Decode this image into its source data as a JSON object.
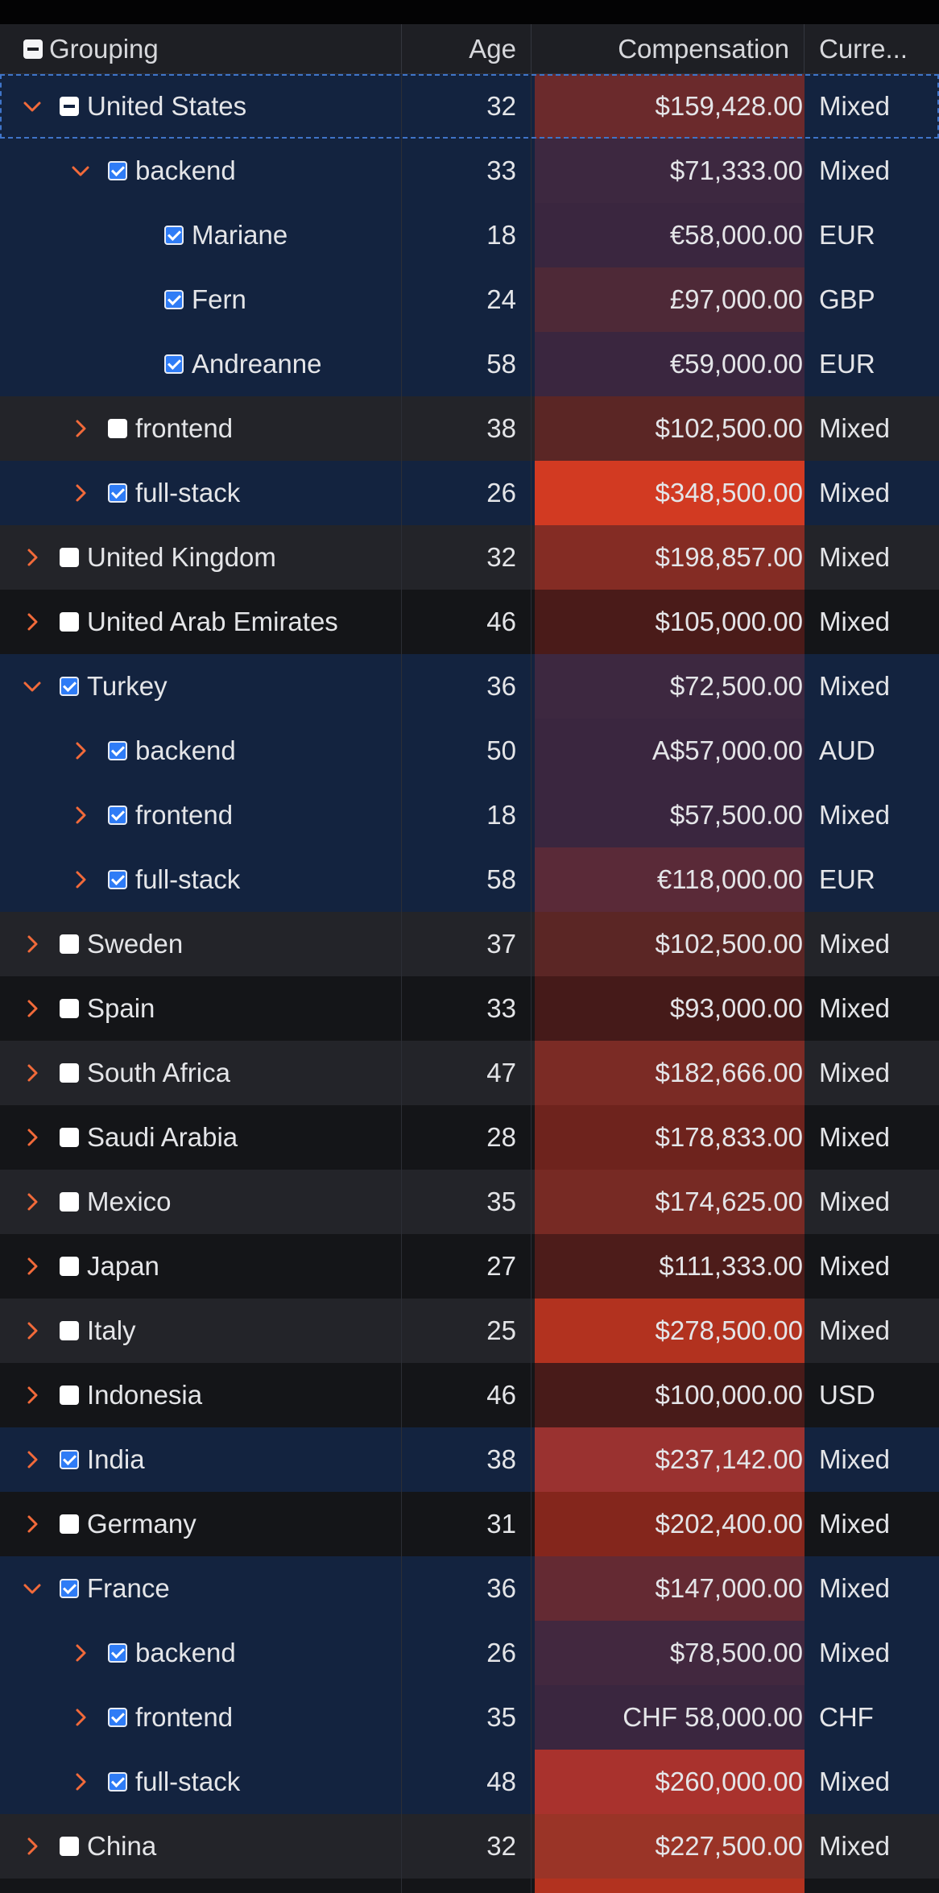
{
  "columns": {
    "grouping": "Grouping",
    "age": "Age",
    "compensation": "Compensation",
    "currency": "Curre..."
  },
  "colors": {
    "accent": "#f26a3a",
    "selected_row": "#13233f",
    "checkbox_on": "#2f7cf6"
  },
  "rows": [
    {
      "level": 0,
      "label": "United States",
      "expanded": true,
      "check": "partial",
      "age": "32",
      "comp": "$159,428.00",
      "currency": "Mixed",
      "comp_color": "#6b2a2c",
      "style": "sel"
    },
    {
      "level": 1,
      "label": "backend",
      "expanded": true,
      "check": "on",
      "age": "33",
      "comp": "$71,333.00",
      "currency": "Mixed",
      "comp_color": "#3d2840",
      "style": "sel"
    },
    {
      "level": 2,
      "label": "Mariane",
      "leaf": true,
      "check": "on",
      "age": "18",
      "comp": "€58,000.00",
      "currency": "EUR",
      "comp_color": "#3a263f",
      "style": "sel"
    },
    {
      "level": 2,
      "label": "Fern",
      "leaf": true,
      "check": "on",
      "age": "24",
      "comp": "£97,000.00",
      "currency": "GBP",
      "comp_color": "#4e2937",
      "style": "sel"
    },
    {
      "level": 2,
      "label": "Andreanne",
      "leaf": true,
      "check": "on",
      "age": "58",
      "comp": "€59,000.00",
      "currency": "EUR",
      "comp_color": "#3a263f",
      "style": "sel"
    },
    {
      "level": 1,
      "label": "frontend",
      "expanded": false,
      "check": "off",
      "age": "38",
      "comp": "$102,500.00",
      "currency": "Mixed",
      "comp_color": "#5b2625",
      "style": "alt"
    },
    {
      "level": 1,
      "label": "full-stack",
      "expanded": false,
      "check": "on",
      "age": "26",
      "comp": "$348,500.00",
      "currency": "Mixed",
      "comp_color": "#d23a22",
      "style": "sel"
    },
    {
      "level": 0,
      "label": "United Kingdom",
      "expanded": false,
      "check": "off",
      "age": "32",
      "comp": "$198,857.00",
      "currency": "Mixed",
      "comp_color": "#842c24",
      "style": "alt"
    },
    {
      "level": 0,
      "label": "United Arab Emirates",
      "expanded": false,
      "check": "off",
      "age": "46",
      "comp": "$105,000.00",
      "currency": "Mixed",
      "comp_color": "#4a1b19",
      "style": "dark"
    },
    {
      "level": 0,
      "label": "Turkey",
      "expanded": true,
      "check": "on",
      "age": "36",
      "comp": "$72,500.00",
      "currency": "Mixed",
      "comp_color": "#3d2840",
      "style": "sel"
    },
    {
      "level": 1,
      "label": "backend",
      "expanded": false,
      "check": "on",
      "age": "50",
      "comp": "A$57,000.00",
      "currency": "AUD",
      "comp_color": "#3a263f",
      "style": "sel"
    },
    {
      "level": 1,
      "label": "frontend",
      "expanded": false,
      "check": "on",
      "age": "18",
      "comp": "$57,500.00",
      "currency": "Mixed",
      "comp_color": "#3a263f",
      "style": "sel"
    },
    {
      "level": 1,
      "label": "full-stack",
      "expanded": false,
      "check": "on",
      "age": "58",
      "comp": "€118,000.00",
      "currency": "EUR",
      "comp_color": "#5a2a38",
      "style": "sel"
    },
    {
      "level": 0,
      "label": "Sweden",
      "expanded": false,
      "check": "off",
      "age": "37",
      "comp": "$102,500.00",
      "currency": "Mixed",
      "comp_color": "#5b2625",
      "style": "alt"
    },
    {
      "level": 0,
      "label": "Spain",
      "expanded": false,
      "check": "off",
      "age": "33",
      "comp": "$93,000.00",
      "currency": "Mixed",
      "comp_color": "#451a19",
      "style": "dark"
    },
    {
      "level": 0,
      "label": "South Africa",
      "expanded": false,
      "check": "off",
      "age": "47",
      "comp": "$182,666.00",
      "currency": "Mixed",
      "comp_color": "#7b2b25",
      "style": "alt"
    },
    {
      "level": 0,
      "label": "Saudi Arabia",
      "expanded": false,
      "check": "off",
      "age": "28",
      "comp": "$178,833.00",
      "currency": "Mixed",
      "comp_color": "#6e231d",
      "style": "dark"
    },
    {
      "level": 0,
      "label": "Mexico",
      "expanded": false,
      "check": "off",
      "age": "35",
      "comp": "$174,625.00",
      "currency": "Mixed",
      "comp_color": "#772a24",
      "style": "alt"
    },
    {
      "level": 0,
      "label": "Japan",
      "expanded": false,
      "check": "off",
      "age": "27",
      "comp": "$111,333.00",
      "currency": "Mixed",
      "comp_color": "#4d1c1a",
      "style": "dark"
    },
    {
      "level": 0,
      "label": "Italy",
      "expanded": false,
      "check": "off",
      "age": "25",
      "comp": "$278,500.00",
      "currency": "Mixed",
      "comp_color": "#b2321f",
      "style": "alt"
    },
    {
      "level": 0,
      "label": "Indonesia",
      "expanded": false,
      "check": "off",
      "age": "46",
      "comp": "$100,000.00",
      "currency": "USD",
      "comp_color": "#481b19",
      "style": "dark"
    },
    {
      "level": 0,
      "label": "India",
      "expanded": false,
      "check": "on",
      "age": "38",
      "comp": "$237,142.00",
      "currency": "Mixed",
      "comp_color": "#9a3230",
      "style": "sel"
    },
    {
      "level": 0,
      "label": "Germany",
      "expanded": false,
      "check": "off",
      "age": "31",
      "comp": "$202,400.00",
      "currency": "Mixed",
      "comp_color": "#84261c",
      "style": "dark"
    },
    {
      "level": 0,
      "label": "France",
      "expanded": true,
      "check": "on",
      "age": "36",
      "comp": "$147,000.00",
      "currency": "Mixed",
      "comp_color": "#642a33",
      "style": "sel"
    },
    {
      "level": 1,
      "label": "backend",
      "expanded": false,
      "check": "on",
      "age": "26",
      "comp": "$78,500.00",
      "currency": "Mixed",
      "comp_color": "#42283f",
      "style": "sel"
    },
    {
      "level": 1,
      "label": "frontend",
      "expanded": false,
      "check": "on",
      "age": "35",
      "comp": "CHF 58,000.00",
      "currency": "CHF",
      "comp_color": "#3a263f",
      "style": "sel"
    },
    {
      "level": 1,
      "label": "full-stack",
      "expanded": false,
      "check": "on",
      "age": "48",
      "comp": "$260,000.00",
      "currency": "Mixed",
      "comp_color": "#a9322d",
      "style": "sel"
    },
    {
      "level": 0,
      "label": "China",
      "expanded": false,
      "check": "off",
      "age": "32",
      "comp": "$227,500.00",
      "currency": "Mixed",
      "comp_color": "#9a3427",
      "style": "alt"
    },
    {
      "level": 0,
      "label": "",
      "expanded": false,
      "check": "none",
      "age": "",
      "comp": "",
      "currency": "",
      "comp_color": "#b2321f",
      "style": "dark"
    }
  ]
}
